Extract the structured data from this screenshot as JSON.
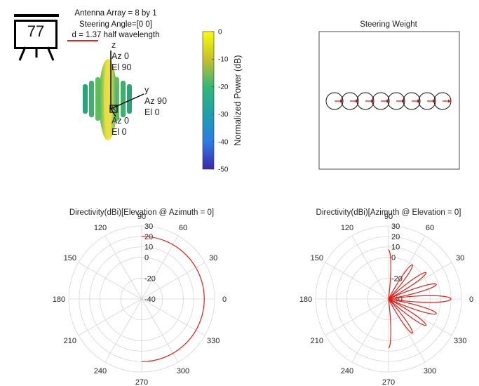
{
  "badge": {
    "number": "77"
  },
  "header": {
    "line1": "Antenna Array = 8 by 1",
    "line2": "Steering Angle=[0 0]",
    "line3": "d = 1.37 half wavelength"
  },
  "axes3d": {
    "z": [
      "z",
      "Az 0",
      "El 90"
    ],
    "y": [
      "y",
      "Az 90",
      "El 0"
    ],
    "x": [
      "x",
      "Az 0",
      "El 0"
    ]
  },
  "colorbar": {
    "label": "Normalized Power (dB)",
    "ticks": [
      0,
      -10,
      -20,
      -30,
      -40,
      -50
    ],
    "colors": {
      "top": "#f9fb0e",
      "bottom": "#3e26a8"
    }
  },
  "steering": {
    "title": "Steering Weight",
    "elements": 8
  },
  "chart_data": [
    {
      "type": "line",
      "polar": true,
      "title": "Directivity(dBi)[Elevation @ Azimuth = 0]",
      "angle_ticks": [
        90,
        60,
        30,
        0,
        330,
        300,
        270,
        240,
        210,
        180,
        150,
        120
      ],
      "radial_ticks": [
        30,
        20,
        10,
        0,
        -20,
        -40
      ],
      "rlim": [
        -40,
        30
      ],
      "series": [
        {
          "color": "#e0201b",
          "theta": [
            90,
            75,
            60,
            45,
            30,
            15,
            0,
            -15,
            -30,
            -45,
            -60,
            -75,
            -90
          ],
          "r": [
            20.1,
            20.1,
            20.1,
            20.1,
            20.1,
            20.1,
            20.1,
            20.1,
            20.1,
            20.1,
            20.1,
            20.1,
            20.1
          ]
        }
      ]
    },
    {
      "type": "line",
      "polar": true,
      "title": "Directivity(dBi)[Azimuth @ Elevation = 0]",
      "angle_ticks": [
        90,
        60,
        30,
        0,
        330,
        300,
        270,
        240,
        210,
        180,
        150,
        120
      ],
      "radial_ticks": [
        30,
        20,
        10,
        0,
        -20,
        -40
      ],
      "rlim": [
        -40,
        30
      ],
      "series": [
        {
          "color": "#e0201b",
          "peaks": [
            {
              "theta": 0,
              "r": 20
            },
            {
              "theta": 17,
              "r": 8
            },
            {
              "theta": -17,
              "r": 8
            },
            {
              "theta": 35,
              "r": 4
            },
            {
              "theta": -35,
              "r": 4
            },
            {
              "theta": 55,
              "r": 0
            },
            {
              "theta": -55,
              "r": 0
            },
            {
              "theta": 90,
              "r": 7
            },
            {
              "theta": -90,
              "r": 7
            }
          ]
        }
      ]
    }
  ]
}
